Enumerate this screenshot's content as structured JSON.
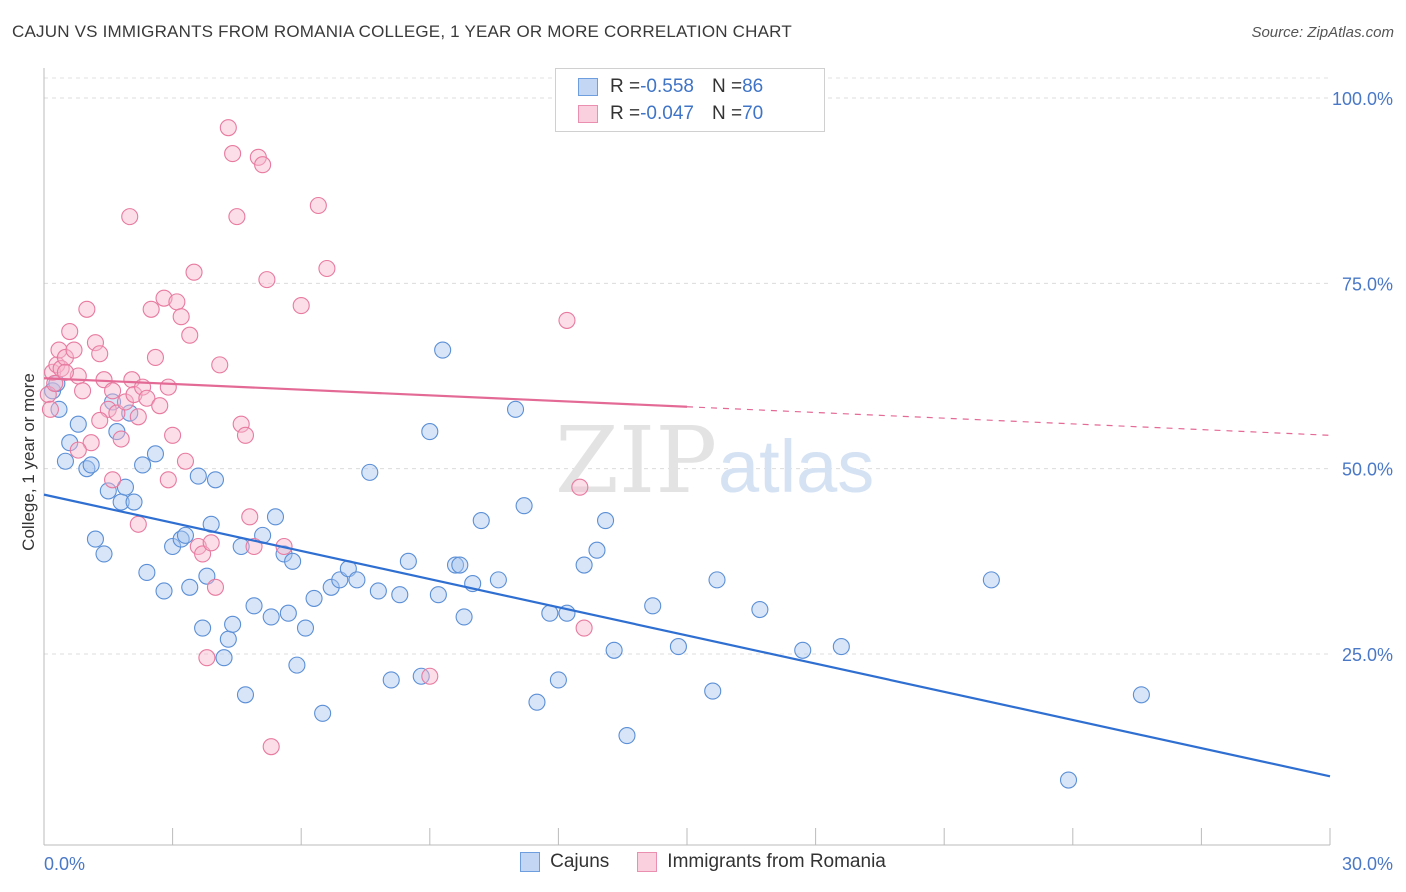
{
  "header": {
    "title": "CAJUN VS IMMIGRANTS FROM ROMANIA COLLEGE, 1 YEAR OR MORE CORRELATION CHART",
    "source": "Source: ZipAtlas.com"
  },
  "watermark": {
    "zip": "ZIP",
    "atlas": "atlas"
  },
  "legend": {
    "rows": [
      {
        "r_label": "R = ",
        "r_value": "-0.558",
        "n_label": "N = ",
        "n_value": "86",
        "color": "#a9c6ef"
      },
      {
        "r_label": "R = ",
        "r_value": "-0.047",
        "n_label": "N = ",
        "n_value": "70",
        "color": "#f7b6cb"
      }
    ]
  },
  "chart_data": {
    "type": "scatter",
    "ylabel": "College, 1 year or more",
    "xlim": [
      0,
      30
    ],
    "ylim": [
      0,
      105
    ],
    "x_tick_labels": [
      "0.0%",
      "30.0%"
    ],
    "y_ticks": [
      25,
      50,
      75,
      100
    ],
    "y_tick_labels": [
      "25.0%",
      "50.0%",
      "75.0%",
      "100.0%"
    ],
    "series": [
      {
        "name": "Cajuns",
        "color": "#a9c6ef",
        "stroke": "#5b8fd6",
        "trend_color": "#2f6fd1",
        "trend": {
          "x0": 0,
          "y0": 46.5,
          "x1": 30,
          "y1": 8.5,
          "solid_until": 30
        },
        "points": [
          [
            0.2,
            60.5
          ],
          [
            0.3,
            61.5
          ],
          [
            0.35,
            58
          ],
          [
            0.5,
            51
          ],
          [
            0.6,
            53.5
          ],
          [
            0.8,
            56
          ],
          [
            1.0,
            50
          ],
          [
            1.1,
            50.5
          ],
          [
            1.2,
            40.5
          ],
          [
            1.4,
            38.5
          ],
          [
            1.5,
            47
          ],
          [
            1.6,
            59
          ],
          [
            1.7,
            55
          ],
          [
            1.8,
            45.5
          ],
          [
            1.9,
            47.5
          ],
          [
            2.0,
            57.5
          ],
          [
            2.1,
            45.5
          ],
          [
            2.3,
            50.5
          ],
          [
            2.4,
            36
          ],
          [
            2.6,
            52
          ],
          [
            2.8,
            33.5
          ],
          [
            3.0,
            39.5
          ],
          [
            3.2,
            40.5
          ],
          [
            3.3,
            41
          ],
          [
            3.4,
            34
          ],
          [
            3.6,
            49
          ],
          [
            3.7,
            28.5
          ],
          [
            3.8,
            35.5
          ],
          [
            3.9,
            42.5
          ],
          [
            4.0,
            48.5
          ],
          [
            4.2,
            24.5
          ],
          [
            4.3,
            27
          ],
          [
            4.4,
            29
          ],
          [
            4.6,
            39.5
          ],
          [
            4.7,
            19.5
          ],
          [
            4.9,
            31.5
          ],
          [
            5.1,
            41
          ],
          [
            5.3,
            30
          ],
          [
            5.4,
            43.5
          ],
          [
            5.6,
            38.5
          ],
          [
            5.7,
            30.5
          ],
          [
            5.8,
            37.5
          ],
          [
            5.9,
            23.5
          ],
          [
            6.1,
            28.5
          ],
          [
            6.3,
            32.5
          ],
          [
            6.5,
            17
          ],
          [
            6.7,
            34
          ],
          [
            6.9,
            35
          ],
          [
            7.1,
            36.5
          ],
          [
            7.3,
            35
          ],
          [
            7.6,
            49.5
          ],
          [
            7.8,
            33.5
          ],
          [
            8.1,
            21.5
          ],
          [
            8.3,
            33
          ],
          [
            8.5,
            37.5
          ],
          [
            8.8,
            22
          ],
          [
            9.0,
            55
          ],
          [
            9.2,
            33
          ],
          [
            9.3,
            66
          ],
          [
            9.6,
            37
          ],
          [
            9.8,
            30
          ],
          [
            10.0,
            34.5
          ],
          [
            10.2,
            43
          ],
          [
            10.6,
            35
          ],
          [
            11.0,
            58
          ],
          [
            11.2,
            45
          ],
          [
            11.5,
            18.5
          ],
          [
            11.8,
            30.5
          ],
          [
            12.2,
            30.5
          ],
          [
            12.6,
            37
          ],
          [
            12.9,
            39
          ],
          [
            13.1,
            43
          ],
          [
            13.3,
            25.5
          ],
          [
            13.6,
            14
          ],
          [
            14.2,
            31.5
          ],
          [
            14.8,
            26
          ],
          [
            15.6,
            20
          ],
          [
            16.7,
            31
          ],
          [
            17.7,
            25.5
          ],
          [
            18.6,
            26
          ],
          [
            22.1,
            35
          ],
          [
            23.9,
            8
          ],
          [
            25.6,
            19.5
          ],
          [
            15.7,
            35
          ],
          [
            12.0,
            21.5
          ],
          [
            9.7,
            37
          ]
        ]
      },
      {
        "name": "Immigrants from Romania",
        "color": "#f7b6cb",
        "stroke": "#e87aa0",
        "trend_color": "#e46a96",
        "trend": {
          "x0": 0,
          "y0": 62.2,
          "x1": 30,
          "y1": 54.5,
          "solid_until": 15
        },
        "points": [
          [
            0.1,
            60
          ],
          [
            0.15,
            58
          ],
          [
            0.2,
            63
          ],
          [
            0.25,
            61.5
          ],
          [
            0.3,
            64
          ],
          [
            0.35,
            66
          ],
          [
            0.4,
            63.5
          ],
          [
            0.5,
            65
          ],
          [
            0.6,
            68.5
          ],
          [
            0.7,
            66
          ],
          [
            0.8,
            62.5
          ],
          [
            0.9,
            60.5
          ],
          [
            1.0,
            71.5
          ],
          [
            1.1,
            53.5
          ],
          [
            1.2,
            67
          ],
          [
            1.3,
            65.5
          ],
          [
            1.4,
            62
          ],
          [
            1.5,
            58
          ],
          [
            1.6,
            60.5
          ],
          [
            1.7,
            57.5
          ],
          [
            1.8,
            54
          ],
          [
            1.9,
            59
          ],
          [
            2.0,
            84
          ],
          [
            2.05,
            62
          ],
          [
            2.1,
            60
          ],
          [
            2.2,
            57
          ],
          [
            2.3,
            61
          ],
          [
            2.4,
            59.5
          ],
          [
            2.5,
            71.5
          ],
          [
            2.6,
            65
          ],
          [
            2.7,
            58.5
          ],
          [
            2.8,
            73
          ],
          [
            2.9,
            61
          ],
          [
            3.0,
            54.5
          ],
          [
            3.1,
            72.5
          ],
          [
            3.2,
            70.5
          ],
          [
            3.3,
            51
          ],
          [
            3.4,
            68
          ],
          [
            3.5,
            76.5
          ],
          [
            3.6,
            39.5
          ],
          [
            3.7,
            38.5
          ],
          [
            3.8,
            24.5
          ],
          [
            3.9,
            40
          ],
          [
            4.0,
            34
          ],
          [
            4.1,
            64
          ],
          [
            4.3,
            96
          ],
          [
            4.4,
            92.5
          ],
          [
            4.5,
            84
          ],
          [
            4.6,
            56
          ],
          [
            4.7,
            54.5
          ],
          [
            4.8,
            43.5
          ],
          [
            4.9,
            39.5
          ],
          [
            5.0,
            92
          ],
          [
            5.1,
            91
          ],
          [
            5.2,
            75.5
          ],
          [
            5.3,
            12.5
          ],
          [
            5.6,
            39.5
          ],
          [
            6.0,
            72
          ],
          [
            6.4,
            85.5
          ],
          [
            6.6,
            77
          ],
          [
            12.2,
            70
          ],
          [
            12.5,
            47.5
          ],
          [
            12.6,
            28.5
          ],
          [
            9.0,
            22
          ],
          [
            2.2,
            42.5
          ],
          [
            1.6,
            48.5
          ],
          [
            2.9,
            48.5
          ],
          [
            0.8,
            52.5
          ],
          [
            1.3,
            56.5
          ],
          [
            0.5,
            63
          ]
        ]
      }
    ],
    "legend_position": "bottom",
    "grid": true
  }
}
